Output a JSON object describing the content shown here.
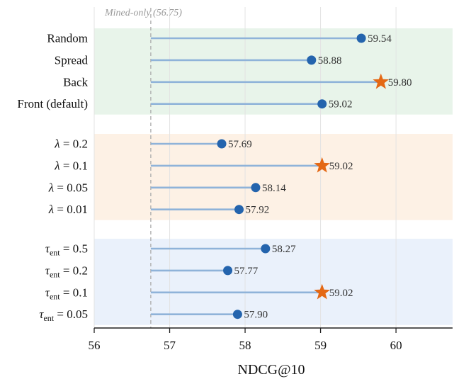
{
  "chart_data": {
    "type": "lollipop",
    "xlabel": "NDCG@10",
    "xlim": [
      56,
      60.75
    ],
    "xticks": [
      56,
      57,
      58,
      59,
      60
    ],
    "grid": "vertical",
    "baseline": {
      "value": 56.75,
      "label": "Mined-only (56.75)"
    },
    "groups": [
      {
        "band_color": "#e8f4ea",
        "rows": [
          {
            "label": "Random",
            "value": 59.54,
            "value_label": "59.54",
            "best": false
          },
          {
            "label": "Spread",
            "value": 58.88,
            "value_label": "58.88",
            "best": false
          },
          {
            "label": "Back",
            "value": 59.8,
            "value_label": "59.80",
            "best": true
          },
          {
            "label": "Front (default)",
            "value": 59.02,
            "value_label": "59.02",
            "best": false
          }
        ]
      },
      {
        "band_color": "#fdf1e5",
        "rows": [
          {
            "label": "λ = 0.2",
            "sym": "λ",
            "sub": "",
            "rest": " = 0.2",
            "value": 57.69,
            "value_label": "57.69",
            "best": false
          },
          {
            "label": "λ = 0.1",
            "sym": "λ",
            "sub": "",
            "rest": " = 0.1",
            "value": 59.02,
            "value_label": "59.02",
            "best": true
          },
          {
            "label": "λ = 0.05",
            "sym": "λ",
            "sub": "",
            "rest": " = 0.05",
            "value": 58.14,
            "value_label": "58.14",
            "best": false
          },
          {
            "label": "λ = 0.01",
            "sym": "λ",
            "sub": "",
            "rest": " = 0.01",
            "value": 57.92,
            "value_label": "57.92",
            "best": false
          }
        ]
      },
      {
        "band_color": "#eaf1fb",
        "rows": [
          {
            "label": "τent = 0.5",
            "sym": "τ",
            "sub": "ent",
            "rest": " = 0.5",
            "value": 58.27,
            "value_label": "58.27",
            "best": false
          },
          {
            "label": "τent = 0.2",
            "sym": "τ",
            "sub": "ent",
            "rest": " = 0.2",
            "value": 57.77,
            "value_label": "57.77",
            "best": false
          },
          {
            "label": "τent = 0.1",
            "sym": "τ",
            "sub": "ent",
            "rest": " = 0.1",
            "value": 59.02,
            "value_label": "59.02",
            "best": true
          },
          {
            "label": "τent = 0.05",
            "sym": "τ",
            "sub": "ent",
            "rest": " = 0.05",
            "value": 57.9,
            "value_label": "57.90",
            "best": false
          }
        ]
      }
    ],
    "colors": {
      "stem": "#8fb3d9",
      "dot": "#2464ad",
      "star": "#e46814",
      "baseline": "#b0b0b0",
      "text": "#333333",
      "grid": "#e3e3e3"
    }
  }
}
